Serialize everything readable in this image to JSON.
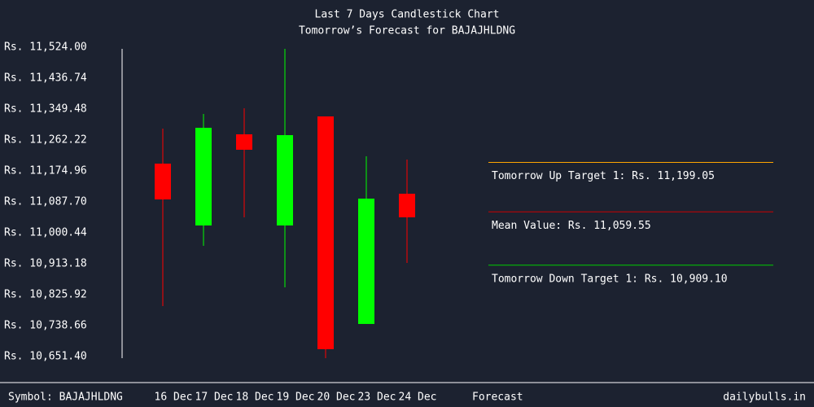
{
  "chart_data": {
    "type": "candlestick",
    "title": "Last 7 Days Candlestick Chart",
    "subtitle": "Tomorrow’s Forecast for BAJAJHLDNG",
    "categories": [
      "16 Dec",
      "17 Dec",
      "18 Dec",
      "19 Dec",
      "20 Dec",
      "23 Dec",
      "24 Dec"
    ],
    "open": [
      11195.6,
      11021.1,
      11278.3,
      11021.1,
      11328.8,
      10743.3,
      11110.7
    ],
    "high": [
      11294.4,
      11335.7,
      11351.8,
      11519.4,
      11328.8,
      11216.3,
      11207.1
    ],
    "low": [
      10793.8,
      10963.7,
      11044.1,
      10846.6,
      10646.8,
      10743.3,
      10915.5
    ],
    "close": [
      11094.6,
      11296.7,
      11234.7,
      11276.0,
      10672.1,
      11096.9,
      11044.1
    ],
    "up_color": "#00ff00",
    "down_color": "#ff0000",
    "ylim": [
      10651.4,
      11524.0
    ],
    "yticks": [
      {
        "value": 11524.0,
        "label": "Rs. 11,524.00"
      },
      {
        "value": 11436.74,
        "label": "Rs. 11,436.74"
      },
      {
        "value": 11349.48,
        "label": "Rs. 11,349.48"
      },
      {
        "value": 11262.22,
        "label": "Rs. 11,262.22"
      },
      {
        "value": 11174.96,
        "label": "Rs. 11,174.96"
      },
      {
        "value": 11087.7,
        "label": "Rs. 11,087.70"
      },
      {
        "value": 11000.44,
        "label": "Rs. 11,000.44"
      },
      {
        "value": 10913.18,
        "label": "Rs. 10,913.18"
      },
      {
        "value": 10825.92,
        "label": "Rs. 10,825.92"
      },
      {
        "value": 10738.66,
        "label": "Rs. 10,738.66"
      },
      {
        "value": 10651.4,
        "label": "Rs. 10,651.40"
      }
    ],
    "forecast": [
      {
        "label": "Tomorrow Up Target 1: Rs. 11,199.05",
        "value": 11199.05,
        "color": "#ffa500"
      },
      {
        "label": "Mean Value: Rs. 11,059.55",
        "value": 11059.55,
        "color": "#cc0000"
      },
      {
        "label": "Tomorrow Down Target 1: Rs. 10,909.10",
        "value": 10909.1,
        "color": "#00cc00"
      }
    ],
    "forecast_label": "Forecast",
    "symbol": "Symbol: BAJAJHLDNG",
    "source": "dailybulls.in"
  }
}
